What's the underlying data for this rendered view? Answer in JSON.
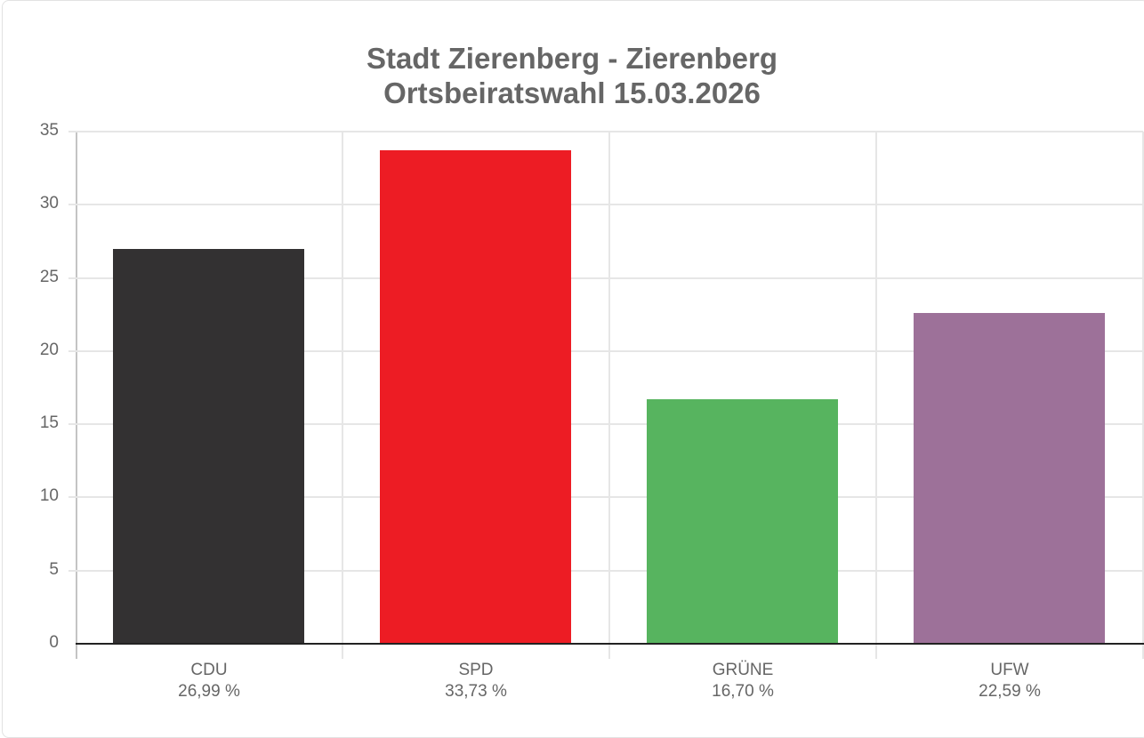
{
  "chart": {
    "title_line1": "Stadt Zierenberg - Zierenberg",
    "title_line2": "Ortsbeiratswahl 15.03.2026",
    "y_ticks": [
      "35",
      "30",
      "25",
      "20",
      "15",
      "10",
      "5",
      "0"
    ],
    "bars": [
      {
        "party": "CDU",
        "label": "26,99 %",
        "value": 26.99,
        "color": "#333132"
      },
      {
        "party": "SPD",
        "label": "33,73 %",
        "value": 33.73,
        "color": "#ed1c24"
      },
      {
        "party": "GRÜNE",
        "label": "16,70 %",
        "value": 16.7,
        "color": "#57b45f"
      },
      {
        "party": "UFW",
        "label": "22,59 %",
        "value": 22.59,
        "color": "#9d7199"
      }
    ]
  },
  "chart_data": {
    "type": "bar",
    "title": "Stadt Zierenberg - Zierenberg Ortsbeiratswahl 15.03.2026",
    "categories": [
      "CDU",
      "SPD",
      "GRÜNE",
      "UFW"
    ],
    "values": [
      26.99,
      33.73,
      16.7,
      22.59
    ],
    "value_labels": [
      "26,99 %",
      "33,73 %",
      "16,70 %",
      "22,59 %"
    ],
    "colors": [
      "#333132",
      "#ed1c24",
      "#57b45f",
      "#9d7199"
    ],
    "xlabel": "",
    "ylabel": "",
    "ylim": [
      0,
      35
    ],
    "y_ticks": [
      0,
      5,
      10,
      15,
      20,
      25,
      30,
      35
    ],
    "grid": true,
    "legend": "none"
  }
}
